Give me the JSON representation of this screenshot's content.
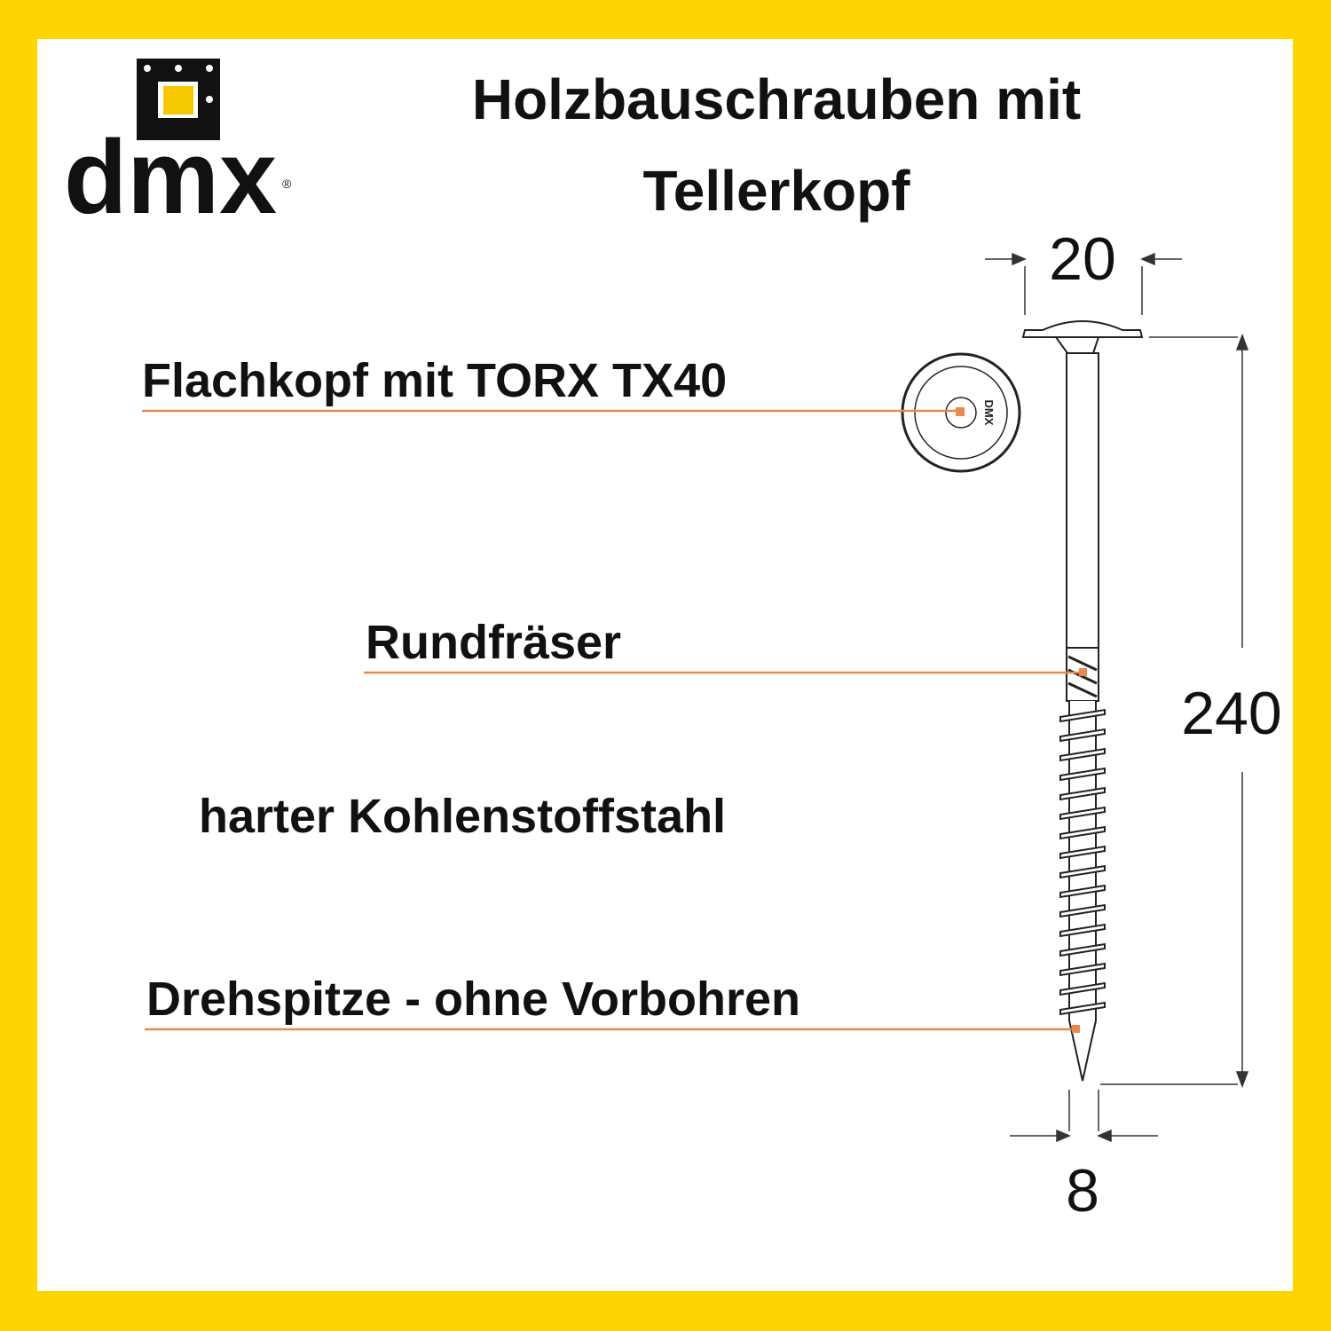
{
  "brand": {
    "logo_text": "dmx",
    "registered": "®",
    "head_marking": "DMX"
  },
  "title": {
    "line1": "Holzbauschrauben mit",
    "line2": "Tellerkopf"
  },
  "labels": {
    "head": "Flachkopf mit TORX TX40",
    "milling": "Rundfräser",
    "material": "harter Kohlenstoffstahl",
    "tip": "Drehspitze - ohne Vorbohren"
  },
  "dimensions": {
    "head_diameter": "20",
    "length": "240",
    "shaft_diameter": "8"
  },
  "colors": {
    "border": "#FFD500",
    "leader_line": "#E8894F",
    "logo_accent": "#F5C800"
  }
}
